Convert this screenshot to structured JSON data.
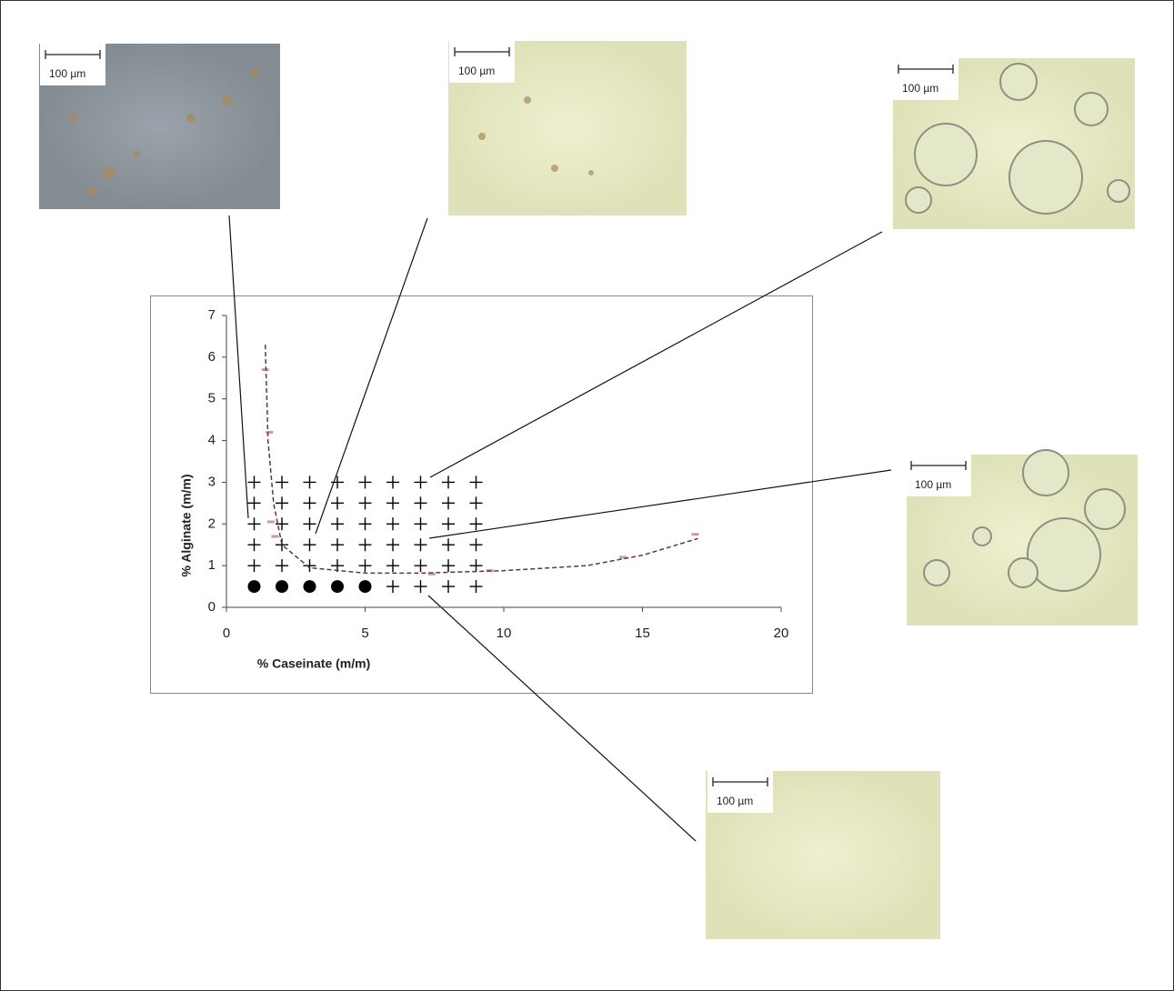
{
  "chart_data": {
    "type": "scatter",
    "xlabel": "% Caseinate (m/m)",
    "ylabel": "% Alginate (m/m)",
    "xlim": [
      0,
      20
    ],
    "xticks": [
      0,
      5,
      10,
      15,
      20
    ],
    "ylim": [
      0,
      7
    ],
    "yticks": [
      0,
      1,
      2,
      3,
      4,
      5,
      6,
      7
    ],
    "grid": false,
    "series": [
      {
        "marker": "plus",
        "color": "#000000",
        "x": [
          1,
          2,
          3,
          4,
          5,
          6,
          7,
          8,
          9,
          1,
          2,
          3,
          4,
          5,
          6,
          7,
          8,
          9,
          1,
          2,
          3,
          4,
          5,
          6,
          7,
          8,
          9,
          1,
          2,
          3,
          4,
          5,
          6,
          7,
          8,
          9,
          1,
          2,
          3,
          4,
          5,
          6,
          7,
          8,
          9,
          6,
          7,
          8,
          9
        ],
        "values": [
          3,
          3,
          3,
          3,
          3,
          3,
          3,
          3,
          3,
          2.5,
          2.5,
          2.5,
          2.5,
          2.5,
          2.5,
          2.5,
          2.5,
          2.5,
          2,
          2,
          2,
          2,
          2,
          2,
          2,
          2,
          2,
          1.5,
          1.5,
          1.5,
          1.5,
          1.5,
          1.5,
          1.5,
          1.5,
          1.5,
          1,
          1,
          1,
          1,
          1,
          1,
          1,
          1,
          1,
          0.5,
          0.5,
          0.5,
          0.5
        ]
      },
      {
        "marker": "circle",
        "color": "#000000",
        "x": [
          1,
          2,
          3,
          4,
          5
        ],
        "values": [
          0.5,
          0.5,
          0.5,
          0.5,
          0.5
        ]
      },
      {
        "marker": "dash",
        "color": "#c99aa8",
        "x": [
          1.4,
          1.55,
          1.6,
          1.75,
          7.4,
          9.5,
          14.3,
          16.9
        ],
        "values": [
          5.7,
          4.2,
          2.05,
          1.7,
          0.8,
          0.88,
          1.2,
          1.75
        ]
      },
      {
        "type": "line",
        "dashed": true,
        "color": "#5a3a3a",
        "x": [
          1.4,
          1.5,
          1.7,
          2.0,
          3,
          5,
          7,
          10,
          13,
          15,
          17
        ],
        "values": [
          6.3,
          4,
          2.5,
          1.5,
          0.95,
          0.82,
          0.82,
          0.88,
          1.0,
          1.25,
          1.65
        ]
      }
    ],
    "annotations": [
      "100 µm",
      "100 µm",
      "100 µm",
      "100 µm",
      "100 µm"
    ]
  }
}
